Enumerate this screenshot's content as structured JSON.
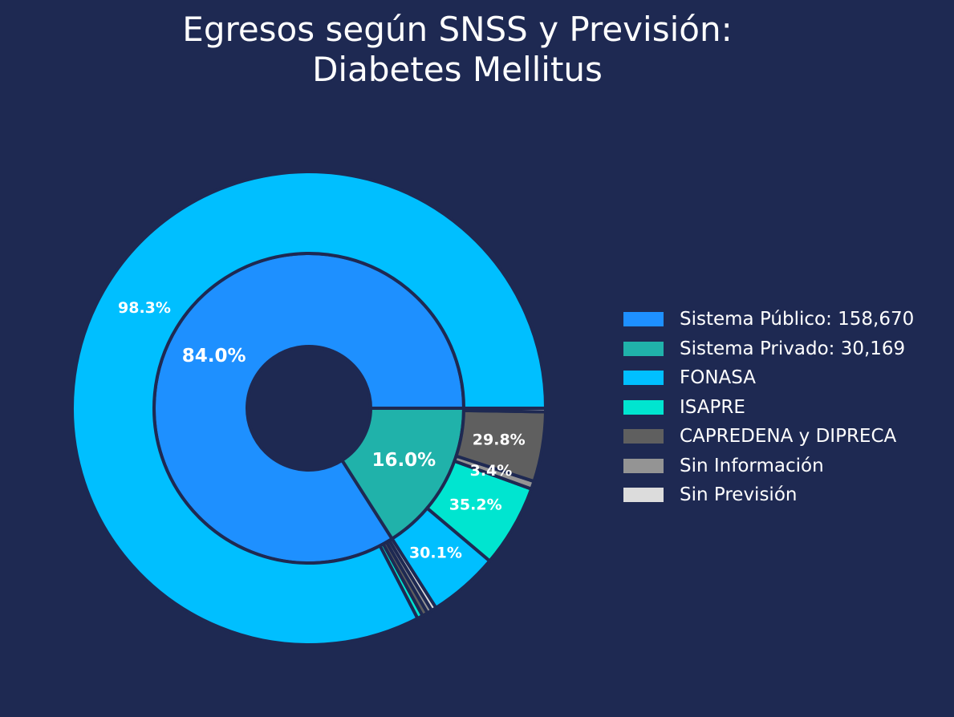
{
  "chart_data": {
    "type": "pie",
    "subtype": "nested-donut",
    "title": [
      "Egresos según SNSS y Previsión:",
      "Diabetes Mellitus"
    ],
    "inner_ring": [
      {
        "name": "Sistema Público",
        "value": 158670,
        "label": "84.0%",
        "color": "#1e90ff"
      },
      {
        "name": "Sistema Privado",
        "value": 30169,
        "label": "16.0%",
        "color": "#20b2aa"
      }
    ],
    "outer_ring": [
      {
        "group": "Sistema Público",
        "name": "FONASA",
        "share": 0.983,
        "label": "98.3%",
        "color": "#00bfff"
      },
      {
        "group": "Sistema Público",
        "name": "ISAPRE",
        "share": 0.0045,
        "label": "",
        "color": "#00e5d0"
      },
      {
        "group": "Sistema Público",
        "name": "CAPREDENA y DIPRECA",
        "share": 0.0045,
        "label": "",
        "color": "#5f5f5f"
      },
      {
        "group": "Sistema Público",
        "name": "Sin Información",
        "share": 0.004,
        "label": "",
        "color": "#949494"
      },
      {
        "group": "Sistema Público",
        "name": "Sin Previsión",
        "share": 0.004,
        "label": "",
        "color": "#dcdcdc"
      },
      {
        "group": "Sistema Privado",
        "name": "FONASA",
        "share": 0.301,
        "label": "30.1%",
        "color": "#00bfff"
      },
      {
        "group": "Sistema Privado",
        "name": "ISAPRE",
        "share": 0.352,
        "label": "35.2%",
        "color": "#00e5d0"
      },
      {
        "group": "Sistema Privado",
        "name": "Sin Información",
        "share": 0.034,
        "label": "3.4%",
        "color": "#949494"
      },
      {
        "group": "Sistema Privado",
        "name": "CAPREDENA y DIPRECA",
        "share": 0.298,
        "label": "29.8%",
        "color": "#5f5f5f"
      },
      {
        "group": "Sistema Privado",
        "name": "Sin Previsión",
        "share": 0.015,
        "label": "",
        "color": "#dcdcdc"
      }
    ],
    "legend": [
      {
        "label": "Sistema Público: 158,670",
        "color": "#1e90ff"
      },
      {
        "label": "Sistema Privado: 30,169",
        "color": "#20b2aa"
      },
      {
        "label": "FONASA",
        "color": "#00bfff"
      },
      {
        "label": "ISAPRE",
        "color": "#00e5d0"
      },
      {
        "label": "CAPREDENA y DIPRECA",
        "color": "#5f5f5f"
      },
      {
        "label": "Sin Información",
        "color": "#949494"
      },
      {
        "label": "Sin Previsión",
        "color": "#dcdcdc"
      }
    ],
    "legend_position": "right",
    "background_color": "#1e2952"
  }
}
